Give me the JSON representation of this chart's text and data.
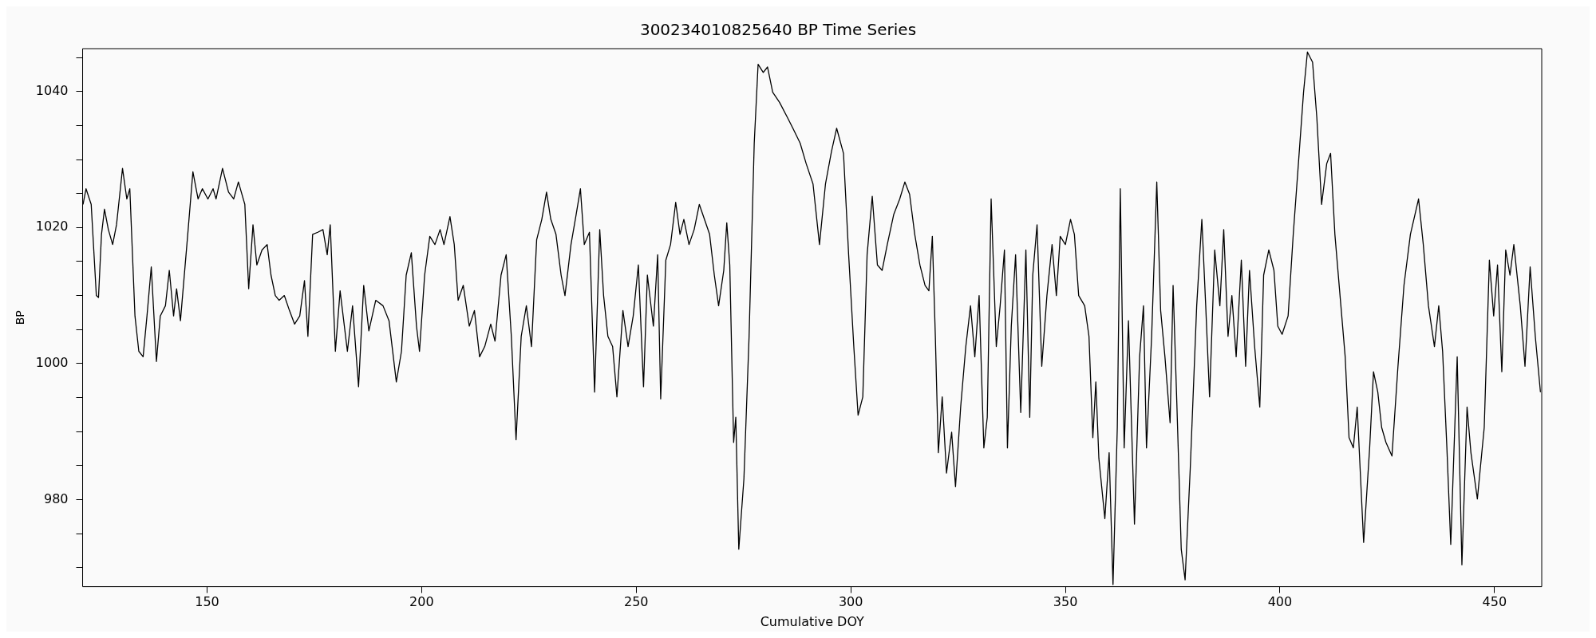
{
  "chart_data": {
    "type": "line",
    "title": "300234010825640 BP Time Series",
    "xlabel": "Cumulative DOY",
    "ylabel": "BP",
    "xlim": [
      121,
      461
    ],
    "xticks": [
      150,
      200,
      250,
      300,
      350,
      400,
      450
    ],
    "ylim": [
      967.2,
      1046.3
    ],
    "yticks": [
      {
        "value": 970,
        "label": null
      },
      {
        "value": 975,
        "label": null
      },
      980,
      {
        "value": 985,
        "label": null
      },
      {
        "value": 990,
        "label": null
      },
      {
        "value": 995,
        "label": null
      },
      1000,
      {
        "value": 1005,
        "label": null
      },
      {
        "value": 1010,
        "label": null
      },
      {
        "value": 1015,
        "label": null
      },
      1020,
      {
        "value": 1025,
        "label": null
      },
      {
        "value": 1030,
        "label": null
      },
      {
        "value": 1035,
        "label": null
      },
      1040,
      {
        "value": 1045,
        "label": null
      }
    ],
    "grid": false,
    "legend": false,
    "marker": "none",
    "line_style": "solid",
    "series": [
      {
        "color": "#000000",
        "x": [
          121.1,
          121.8,
          123,
          124.2,
          124.7,
          125.4,
          126.1,
          127,
          128,
          128.9,
          130.3,
          131.3,
          132,
          133.2,
          134.1,
          135.1,
          136,
          137,
          138.2,
          139.1,
          140.3,
          141.2,
          142.2,
          142.9,
          143.8,
          145.5,
          146.7,
          147.9,
          148.9,
          150.2,
          151.4,
          152.1,
          153.6,
          155,
          156.2,
          157.3,
          158.8,
          159.7,
          160.7,
          161.6,
          162.8,
          164,
          164.9,
          165.9,
          166.8,
          168,
          169.2,
          170.4,
          171.6,
          172.7,
          173.5,
          174.6,
          175.8,
          177,
          178,
          178.7,
          179.9,
          181,
          182.7,
          183.9,
          185.3,
          186.5,
          187.7,
          189.3,
          191,
          192.4,
          194.1,
          195.3,
          196.4,
          197.6,
          198.8,
          199.5,
          200.7,
          201.9,
          203.1,
          204.3,
          205.2,
          206.6,
          207.6,
          208.5,
          209.7,
          211.1,
          212.3,
          213.5,
          214.7,
          216.1,
          217.1,
          218.5,
          219.7,
          220.9,
          222,
          223.2,
          224.4,
          225.6,
          226.8,
          228,
          229.1,
          230.1,
          231.3,
          232.5,
          233.4,
          234.8,
          236,
          237,
          237.9,
          239.1,
          240.3,
          241.5,
          242.4,
          243.4,
          244.5,
          245.5,
          246.9,
          248.1,
          249.3,
          250.5,
          251.7,
          252.6,
          254,
          255,
          255.7,
          256.9,
          258,
          259.2,
          260.2,
          261.1,
          262.3,
          263.5,
          264.7,
          265.9,
          267.1,
          268.2,
          269.2,
          270.4,
          271.1,
          271.8,
          272.7,
          273.2,
          273.9,
          275.1,
          276.3,
          277.5,
          278.4,
          279.6,
          280.6,
          281.8,
          283.4,
          285.3,
          286.5,
          288.2,
          289.6,
          291.2,
          292.7,
          294.1,
          295.5,
          296.7,
          298.3,
          299.5,
          300.7,
          301.7,
          302.8,
          303.8,
          305,
          306.2,
          307.3,
          308.5,
          310,
          311.4,
          312.6,
          313.7,
          314.9,
          316.1,
          317.3,
          318.2,
          319,
          319.7,
          320.4,
          321.3,
          322.3,
          323.5,
          324.4,
          325.6,
          326.8,
          327.9,
          328.9,
          329.9,
          331,
          331.8,
          332.7,
          333.9,
          334.8,
          335.8,
          336.5,
          337.4,
          338.4,
          339.6,
          340.8,
          341.7,
          342.4,
          343.4,
          344.5,
          345.7,
          346.9,
          347.9,
          348.8,
          350,
          351.2,
          352.1,
          353.1,
          354.5,
          355.5,
          356.4,
          357.1,
          357.8,
          359.2,
          360.2,
          361.1,
          362.1,
          362.8,
          363.7,
          364.7,
          366.1,
          367.3,
          368.2,
          368.9,
          370.1,
          371.3,
          372.2,
          373.2,
          374.4,
          375.1,
          376,
          377,
          377.9,
          379.1,
          380.6,
          381.8,
          382.7,
          383.6,
          384.8,
          386,
          386.9,
          387.9,
          388.8,
          389.8,
          391,
          392,
          392.9,
          394.1,
          395.3,
          396.2,
          397.4,
          398.6,
          399.5,
          400.5,
          401.9,
          403.1,
          404.3,
          405.5,
          406.4,
          407.6,
          408.6,
          409.7,
          410.9,
          411.8,
          412.8,
          414.2,
          415.2,
          416.1,
          417.1,
          418,
          419.5,
          420.9,
          421.8,
          422.8,
          423.7,
          424.7,
          426.1,
          427.5,
          428.9,
          430.4,
          432.3,
          433.4,
          434.6,
          436,
          437,
          437.9,
          438.9,
          439.8,
          441.3,
          442.4,
          443.6,
          444.5,
          446,
          447.6,
          448.8,
          449.8,
          450.7,
          451.7,
          452.6,
          453.6,
          454.5,
          456,
          457.1,
          458.3,
          459.5,
          460.7
        ],
        "values": [
          1023.4,
          1025.7,
          1023.4,
          1010,
          1009.7,
          1019,
          1022.7,
          1019.7,
          1017.5,
          1020.4,
          1028.7,
          1024.2,
          1025.7,
          1007,
          1001.8,
          1001,
          1007,
          1014.2,
          1000.3,
          1007,
          1008.5,
          1013.7,
          1007,
          1011,
          1006.3,
          1019,
          1028.2,
          1024.2,
          1025.7,
          1024.2,
          1025.7,
          1024.2,
          1028.7,
          1025.2,
          1024.2,
          1026.7,
          1023.4,
          1011,
          1020.4,
          1014.5,
          1016.7,
          1017.5,
          1013,
          1010,
          1009.3,
          1010,
          1007.8,
          1005.8,
          1007,
          1012.2,
          1004,
          1019,
          1019.3,
          1019.7,
          1016,
          1020.4,
          1001.8,
          1010.7,
          1001.8,
          1008.5,
          996.6,
          1011.5,
          1004.8,
          1009.3,
          1008.5,
          1006.3,
          997.3,
          1001.8,
          1013,
          1016.3,
          1005.5,
          1001.8,
          1013,
          1018.7,
          1017.5,
          1019.7,
          1017.5,
          1021.6,
          1017.5,
          1009.3,
          1011.5,
          1005.5,
          1007.8,
          1001,
          1002.5,
          1005.8,
          1003.3,
          1013,
          1016,
          1004,
          988.8,
          1004,
          1008.5,
          1002.5,
          1018.2,
          1021.2,
          1025.2,
          1021.2,
          1019,
          1013,
          1010,
          1017.5,
          1021.9,
          1025.7,
          1017.5,
          1019.3,
          995.8,
          1019.7,
          1010,
          1004,
          1002.5,
          995.1,
          1007.8,
          1002.5,
          1007,
          1014.5,
          996.6,
          1013,
          1005.5,
          1016,
          994.8,
          1015.2,
          1017.5,
          1023.7,
          1019,
          1021.2,
          1017.5,
          1019.7,
          1023.4,
          1021.2,
          1019,
          1013,
          1008.5,
          1013.7,
          1020.7,
          1014.5,
          988.4,
          992.1,
          972.7,
          983.1,
          1004,
          1032.4,
          1044,
          1042.8,
          1043.6,
          1039.9,
          1038.4,
          1036.1,
          1034.6,
          1032.4,
          1029.4,
          1026.4,
          1017.5,
          1026.4,
          1031.2,
          1034.6,
          1030.9,
          1016,
          1002.5,
          992.4,
          995.1,
          1016,
          1024.6,
          1014.5,
          1013.7,
          1017.5,
          1021.9,
          1024.2,
          1026.7,
          1024.9,
          1019,
          1014.5,
          1011.5,
          1010.7,
          1018.7,
          1004,
          986.9,
          995.1,
          983.9,
          989.9,
          981.9,
          993.6,
          1002.5,
          1008.5,
          1001,
          1010,
          987.6,
          992.1,
          1024.2,
          1002.5,
          1008.5,
          1016.7,
          987.6,
          1005.5,
          1016,
          992.8,
          1016.7,
          992.1,
          1013,
          1020.4,
          999.6,
          1010,
          1017.5,
          1010,
          1018.7,
          1017.5,
          1021.2,
          1019,
          1010,
          1008.5,
          1004,
          989.1,
          997.3,
          986.1,
          977.2,
          986.9,
          967.5,
          990.6,
          1025.7,
          987.6,
          1006.3,
          976.4,
          1001,
          1008.5,
          987.6,
          1004,
          1026.7,
          1007.8,
          1001,
          991.3,
          1011.5,
          993.6,
          972.7,
          968.2,
          984.6,
          1008.5,
          1021.2,
          1008.5,
          995.1,
          1016.7,
          1008.5,
          1019.7,
          1004,
          1010,
          1001,
          1015.2,
          999.6,
          1013.7,
          1002.5,
          993.6,
          1013,
          1016.7,
          1013.7,
          1005.5,
          1004.3,
          1007,
          1019,
          1029.4,
          1039.9,
          1045.8,
          1044.3,
          1036.1,
          1023.4,
          1029.4,
          1030.9,
          1019,
          1008.5,
          1001,
          989.1,
          987.6,
          993.6,
          973.7,
          987.6,
          998.8,
          995.8,
          990.6,
          988.4,
          986.4,
          999.6,
          1011.5,
          1019,
          1024.2,
          1017.5,
          1008.5,
          1002.5,
          1008.5,
          1001.8,
          987.6,
          973.4,
          1001,
          970.4,
          993.6,
          986.9,
          980.1,
          990.6,
          1015.2,
          1007,
          1014.5,
          998.8,
          1016.7,
          1013,
          1017.5,
          1008.5,
          999.6,
          1014.2,
          1004,
          995.8
        ]
      }
    ]
  }
}
